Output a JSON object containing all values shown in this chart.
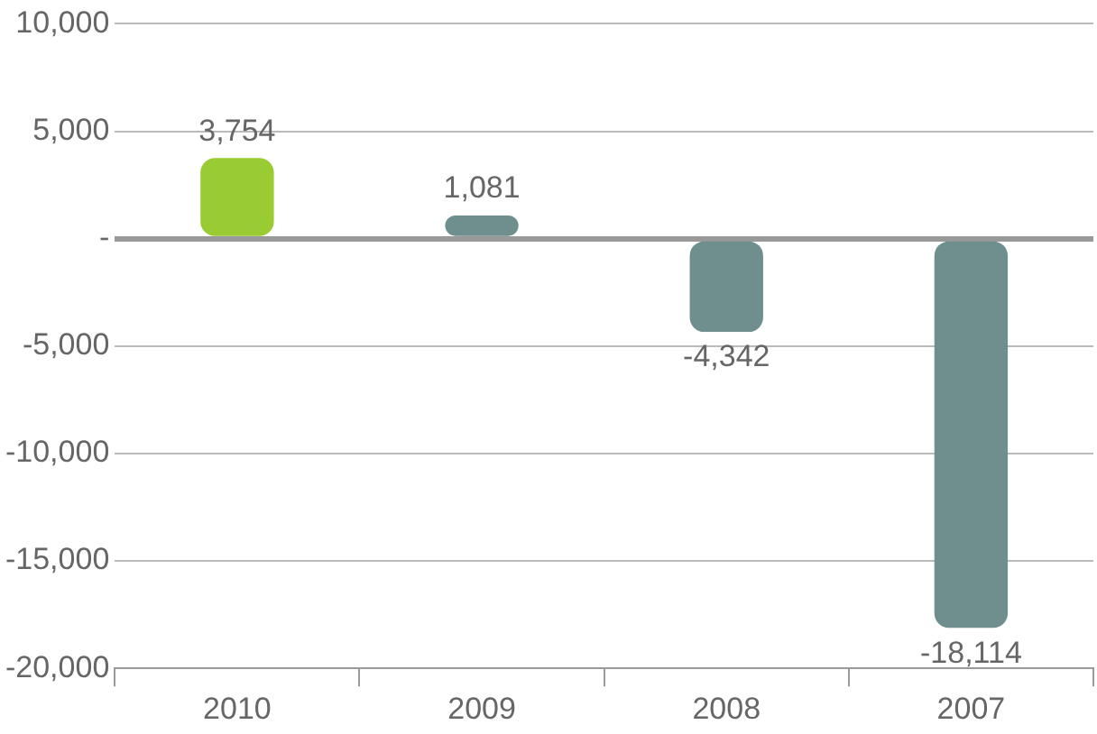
{
  "chart_data": {
    "type": "bar",
    "categories": [
      "2010",
      "2009",
      "2008",
      "2007"
    ],
    "values": [
      3754,
      1081,
      -4342,
      -18114
    ],
    "value_labels": [
      "3,754",
      "1,081",
      "-4,342",
      "-18,114"
    ],
    "colors": [
      "#99cc33",
      "#6f8f8f",
      "#6f8f8f",
      "#6f8f8f"
    ],
    "ylim": [
      -20000,
      10000
    ],
    "yticks": [
      {
        "value": -20000,
        "label": "-20,000"
      },
      {
        "value": -15000,
        "label": "-15,000"
      },
      {
        "value": -10000,
        "label": "-10,000"
      },
      {
        "value": -5000,
        "label": "-5,000"
      },
      {
        "value": 0,
        "label": "-"
      },
      {
        "value": 5000,
        "label": "5,000"
      },
      {
        "value": 10000,
        "label": "10,000"
      }
    ],
    "grid": "y"
  }
}
